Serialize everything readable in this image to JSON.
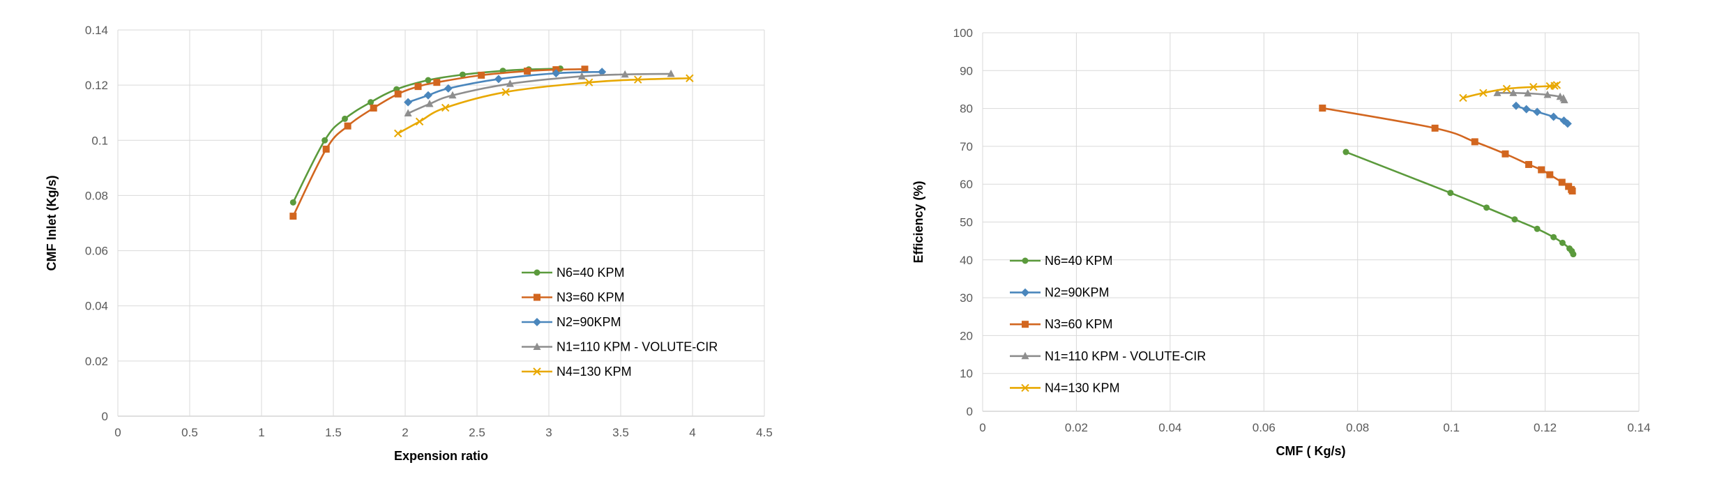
{
  "chart_data": [
    {
      "type": "line",
      "title": "",
      "xlabel": "Expension ratio",
      "ylabel": "CMF Inlet (Kg/s)",
      "xlim": [
        0,
        4.5
      ],
      "ylim": [
        0,
        0.14
      ],
      "xticks": [
        "0",
        "0.5",
        "1",
        "1.5",
        "2",
        "2.5",
        "3",
        "3.5",
        "4",
        "4.5"
      ],
      "yticks": [
        "0",
        "0.02",
        "0.04",
        "0.06",
        "0.08",
        "0.1",
        "0.12",
        "0.14"
      ],
      "grid": true,
      "legend_position": "bottom-right",
      "series": [
        {
          "name": "N6=40 KPM",
          "color": "#5B9A3C",
          "marker": "circle",
          "x": [
            1.22,
            1.44,
            1.58,
            1.76,
            1.94,
            2.16,
            2.4,
            2.68,
            2.86,
            3.08
          ],
          "y": [
            0.0775,
            0.1,
            0.1078,
            0.1138,
            0.1185,
            0.1218,
            0.1238,
            0.1252,
            0.1257,
            0.126
          ]
        },
        {
          "name": "N3=60 KPM",
          "color": "#D2661F",
          "marker": "square",
          "x": [
            1.22,
            1.45,
            1.6,
            1.78,
            1.95,
            2.09,
            2.22,
            2.53,
            2.85,
            3.05,
            3.25
          ],
          "y": [
            0.0725,
            0.0968,
            0.1052,
            0.1117,
            0.1168,
            0.1195,
            0.121,
            0.1236,
            0.1251,
            0.1256,
            0.1258
          ]
        },
        {
          "name": "N2=90KPM",
          "color": "#4A86BC",
          "marker": "diamond",
          "x": [
            2.02,
            2.16,
            2.3,
            2.65,
            3.05,
            3.37
          ],
          "y": [
            0.1138,
            0.1163,
            0.1188,
            0.1222,
            0.1243,
            0.1248
          ]
        },
        {
          "name": "N1=110 KPM - VOLUTE-CIR",
          "color": "#8E8E8E",
          "marker": "triangle",
          "x": [
            2.02,
            2.17,
            2.33,
            2.73,
            3.23,
            3.53,
            3.85
          ],
          "y": [
            0.1098,
            0.1132,
            0.1163,
            0.1205,
            0.1232,
            0.1239,
            0.1241
          ]
        },
        {
          "name": "N4=130 KPM",
          "color": "#E8A800",
          "marker": "x",
          "x": [
            1.95,
            2.1,
            2.28,
            2.7,
            3.28,
            3.62,
            3.98
          ],
          "y": [
            0.1025,
            0.1068,
            0.1118,
            0.1175,
            0.121,
            0.122,
            0.1225
          ]
        }
      ]
    },
    {
      "type": "line",
      "title": "",
      "xlabel": "CMF ( Kg/s)",
      "ylabel": "Efficiency (%)",
      "xlim": [
        0,
        0.14
      ],
      "ylim": [
        0,
        100
      ],
      "xticks": [
        "0",
        "0.02",
        "0.04",
        "0.06",
        "0.08",
        "0.1",
        "0.12",
        "0.14"
      ],
      "yticks": [
        "0",
        "10",
        "20",
        "30",
        "40",
        "50",
        "60",
        "70",
        "80",
        "90",
        "100"
      ],
      "grid": true,
      "legend_position": "left",
      "series": [
        {
          "name": "N6=40 KPM",
          "color": "#5B9A3C",
          "marker": "circle",
          "x": [
            0.0775,
            0.0998,
            0.1075,
            0.1135,
            0.1183,
            0.1218,
            0.1237,
            0.1252,
            0.1257,
            0.126
          ],
          "y": [
            68.5,
            57.7,
            53.8,
            50.7,
            48.2,
            46,
            44.5,
            43,
            42.3,
            41.5
          ]
        },
        {
          "name": "N2=90KPM",
          "color": "#4A86BC",
          "marker": "diamond",
          "x": [
            0.1138,
            0.116,
            0.1183,
            0.1218,
            0.124,
            0.1248
          ],
          "y": [
            80.7,
            79.8,
            79.1,
            77.8,
            76.8,
            76
          ]
        },
        {
          "name": "N3=60 KPM",
          "color": "#D2661F",
          "marker": "square",
          "x": [
            0.0725,
            0.0965,
            0.105,
            0.1115,
            0.1165,
            0.1192,
            0.121,
            0.1236,
            0.125,
            0.1256,
            0.1258
          ],
          "y": [
            80.1,
            74.8,
            71.2,
            68,
            65.2,
            63.8,
            62.5,
            60.5,
            59.4,
            58.6,
            58.2
          ]
        },
        {
          "name": "N1=110 KPM - VOLUTE-CIR",
          "color": "#8E8E8E",
          "marker": "triangle",
          "x": [
            0.1098,
            0.1132,
            0.1163,
            0.1205,
            0.1232,
            0.1239,
            0.1241
          ],
          "y": [
            84.1,
            84.1,
            84,
            83.6,
            83.1,
            82.7,
            82.2
          ]
        },
        {
          "name": "N4=130 KPM",
          "color": "#E8A800",
          "marker": "x",
          "x": [
            0.1025,
            0.1068,
            0.1118,
            0.1175,
            0.121,
            0.122,
            0.1225
          ],
          "y": [
            82.8,
            84.1,
            85.2,
            85.7,
            85.9,
            86,
            86.2
          ]
        }
      ]
    }
  ]
}
